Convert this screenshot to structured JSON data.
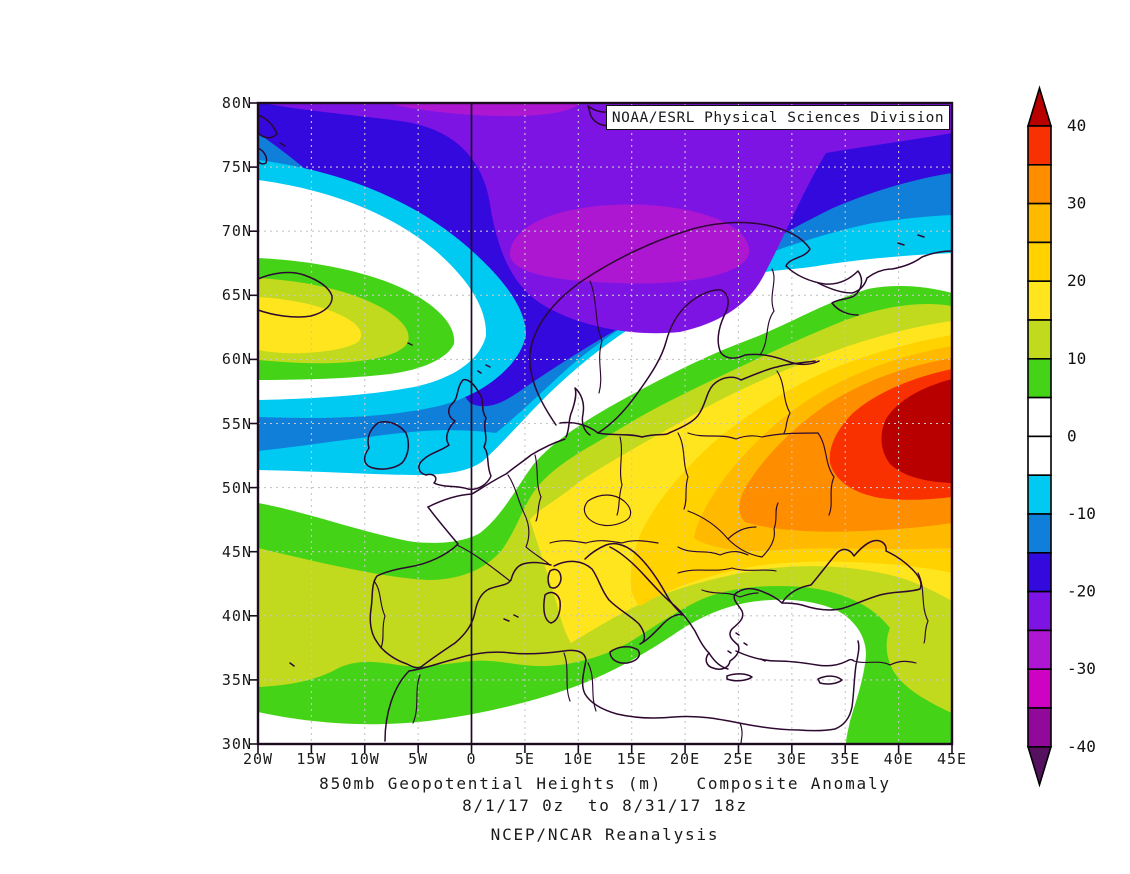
{
  "credit_box": {
    "text": "NOAA/ESRL Physical Sciences Division"
  },
  "captions": {
    "title": "850mb Geopotential Heights (m)   Composite Anomaly",
    "period": "8/1/17 0z  to 8/31/17 18z",
    "source": "NCEP/NCAR Reanalysis"
  },
  "axes": {
    "lat_labels": [
      "80N",
      "75N",
      "70N",
      "65N",
      "60N",
      "55N",
      "50N",
      "45N",
      "40N",
      "35N",
      "30N"
    ],
    "lon_labels": [
      "20W",
      "15W",
      "10W",
      "5W",
      "0",
      "5E",
      "10E",
      "15E",
      "20E",
      "25E",
      "30E",
      "35E",
      "40E",
      "45E"
    ]
  },
  "colorbar": {
    "units": "m",
    "tick_labels": [
      "40",
      "30",
      "20",
      "10",
      "0",
      "-10",
      "-20",
      "-30",
      "-40"
    ],
    "segment_colors_top_to_bottom": [
      "#f93000",
      "#ff8d00",
      "#ffba00",
      "#ffd200",
      "#ffe51e",
      "#c2da1e",
      "#45d318",
      "#ffffff",
      "#ffffff",
      "#00c9f2",
      "#0f7fd9",
      "#3309dd",
      "#7d14e4",
      "#ad17d2",
      "#cd02c3",
      "#91099a"
    ],
    "arrow_top_color": "#b80000",
    "arrow_bottom_color": "#551060"
  },
  "map": {
    "extent": {
      "lon_left": "20W",
      "lon_right": "45E",
      "lat_bottom": "30N",
      "lat_top": "80N"
    },
    "line_colors": {
      "coastline": "#2d0830",
      "grid": "#c6c6c6",
      "frame": "#1d0c20"
    },
    "anomaly_features": {
      "negative_center": "north Scandinavia / Norwegian Sea (below -25 m)",
      "positive_center": "western Russia near 42E 53N (above +40 m)",
      "secondary_positive": "Iceland (+15 to +20 m)"
    }
  }
}
